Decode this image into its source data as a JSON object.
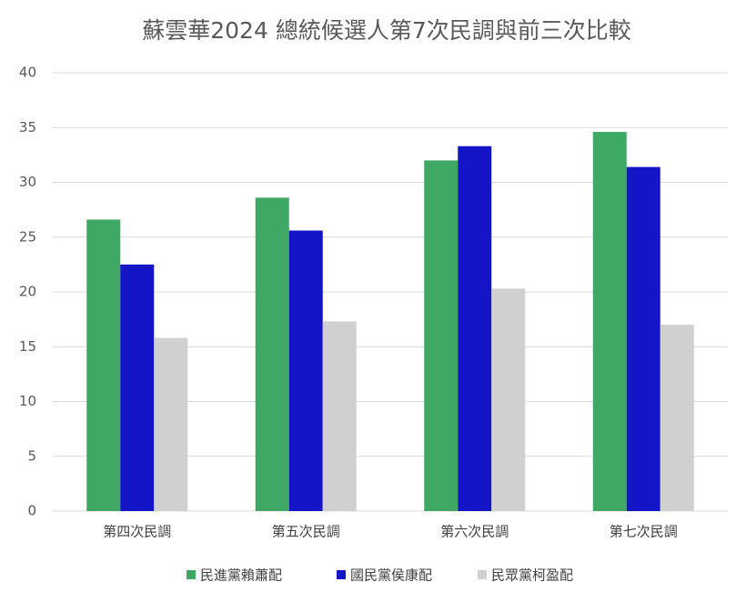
{
  "chart_data": {
    "type": "bar",
    "title": "蘇雲華2024 總統候選人第7次民調與前三次比較",
    "categories": [
      "第四次民調",
      "第五次民調",
      "第六次民調",
      "第七次民調"
    ],
    "series": [
      {
        "name": "民進黨賴蕭配",
        "color": "#3fa864",
        "values": [
          26.6,
          28.6,
          32.0,
          34.6
        ]
      },
      {
        "name": "國民黨侯康配",
        "color": "#1515c8",
        "values": [
          22.5,
          25.6,
          33.3,
          31.4
        ]
      },
      {
        "name": "民眾黨柯盈配",
        "color": "#d0d0d0",
        "values": [
          15.8,
          17.3,
          20.3,
          17.0
        ]
      }
    ],
    "ylim": [
      0,
      40
    ],
    "yticks": [
      0,
      5,
      10,
      15,
      20,
      25,
      30,
      35,
      40
    ],
    "grid": true,
    "legend": "bottom"
  }
}
